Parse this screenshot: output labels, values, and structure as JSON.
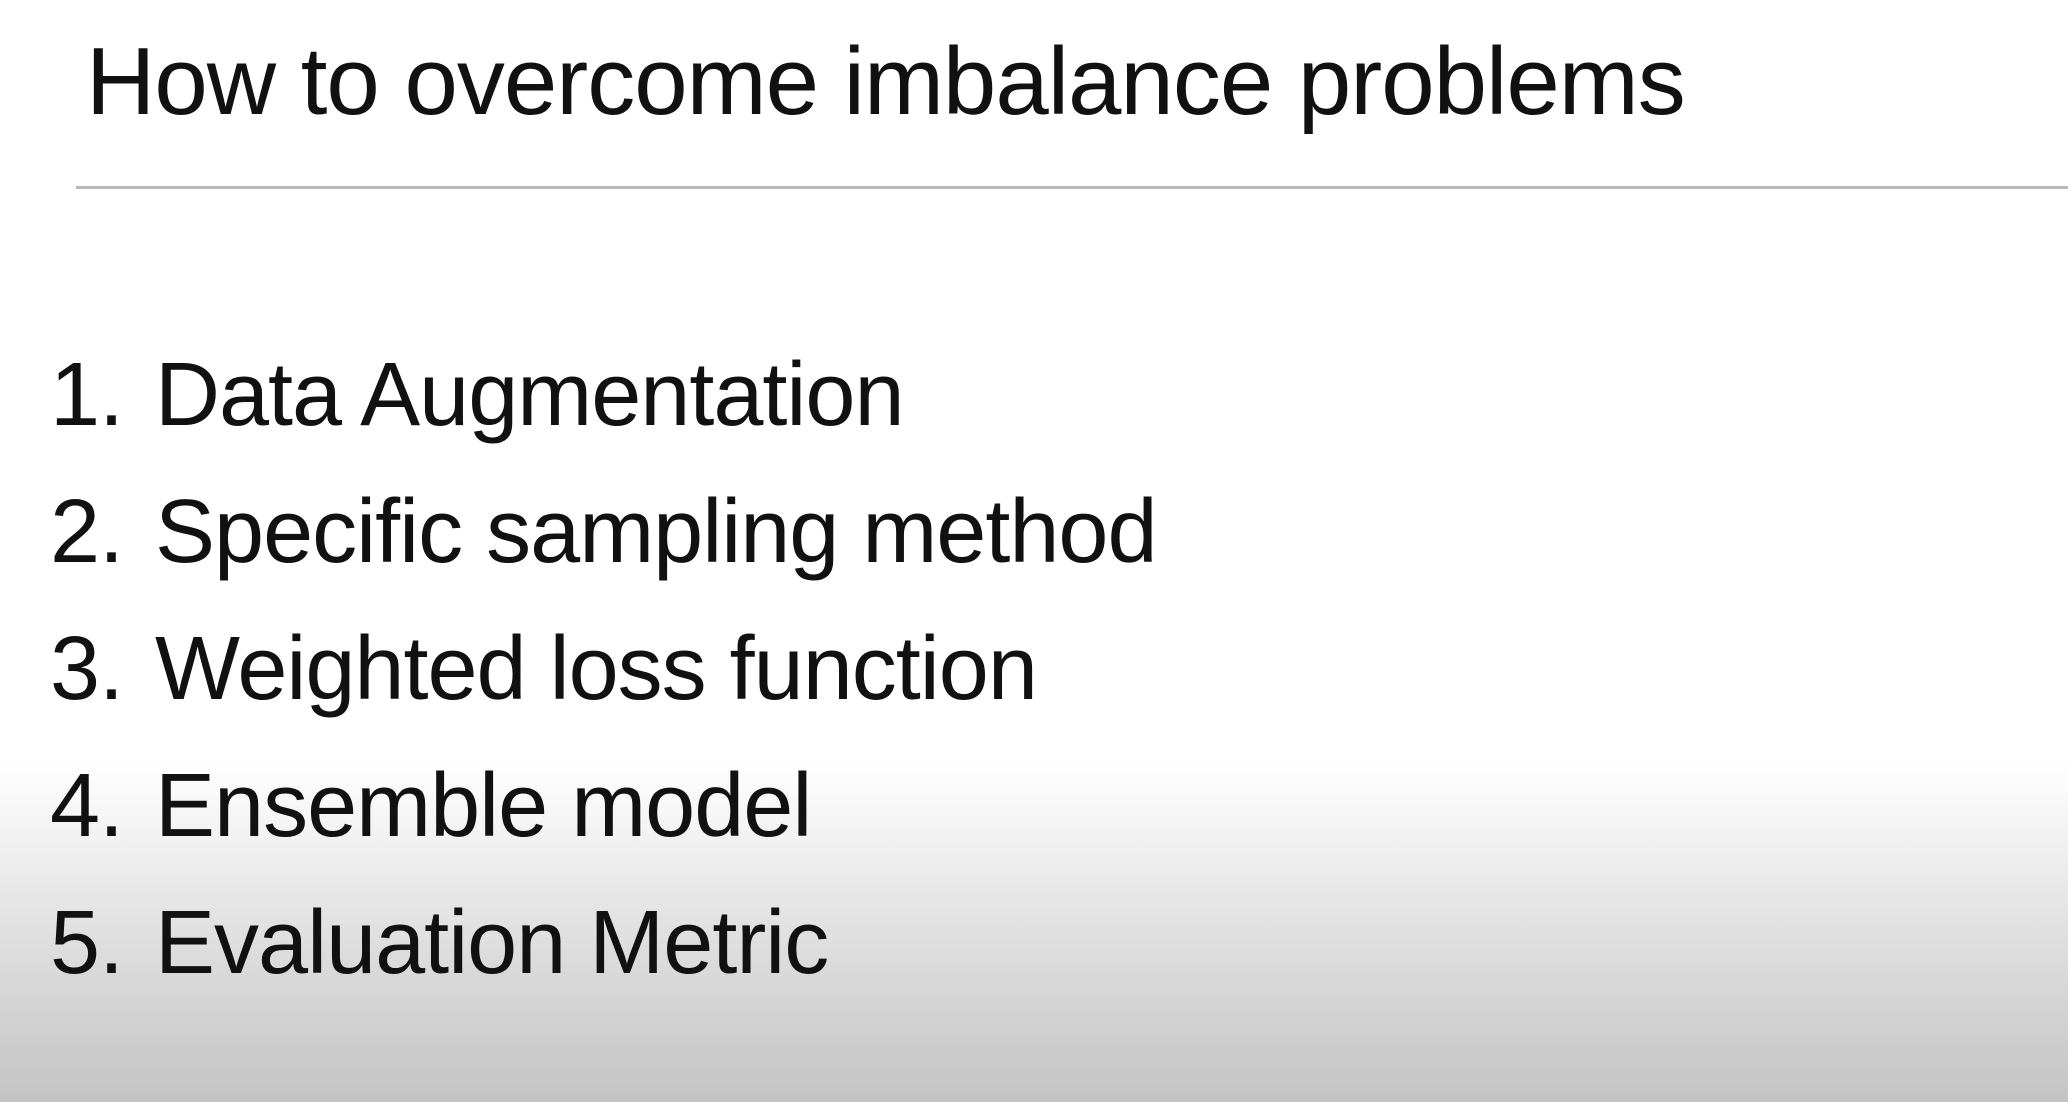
{
  "slide": {
    "title": "How to overcome imbalance problems",
    "items": [
      {
        "number": "1.",
        "label": "Data Augmentation"
      },
      {
        "number": "2.",
        "label": "Specific sampling method"
      },
      {
        "number": "3.",
        "label": "Weighted loss function"
      },
      {
        "number": "4.",
        "label": "Ensemble model"
      },
      {
        "number": "5.",
        "label": "Evaluation Metric"
      }
    ]
  },
  "colors": {
    "background": "#ffffff",
    "text": "#111111",
    "rule": "#b9b9b9",
    "bottom_shadow": "#c4c4c4"
  }
}
